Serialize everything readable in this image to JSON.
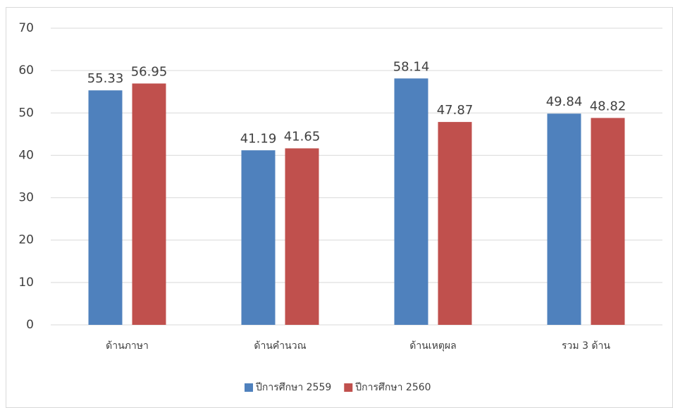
{
  "chart_data": {
    "type": "bar",
    "categories": [
      "ด้านภาษา",
      "ด้านคำนวณ",
      "ด้านเหตุผล",
      "รวม 3 ด้าน"
    ],
    "series": [
      {
        "name": "ปีการศึกษา 2559",
        "color": "#4f81bd",
        "values": [
          55.33,
          41.19,
          58.14,
          49.84
        ]
      },
      {
        "name": "ปีการศึกษา 2560",
        "color": "#c0504d",
        "values": [
          56.95,
          41.65,
          47.87,
          48.82
        ]
      }
    ],
    "ylim": [
      0,
      70
    ],
    "yticks": [
      0,
      10,
      20,
      30,
      40,
      50,
      60,
      70
    ],
    "grid": true,
    "legend": "bottom"
  }
}
